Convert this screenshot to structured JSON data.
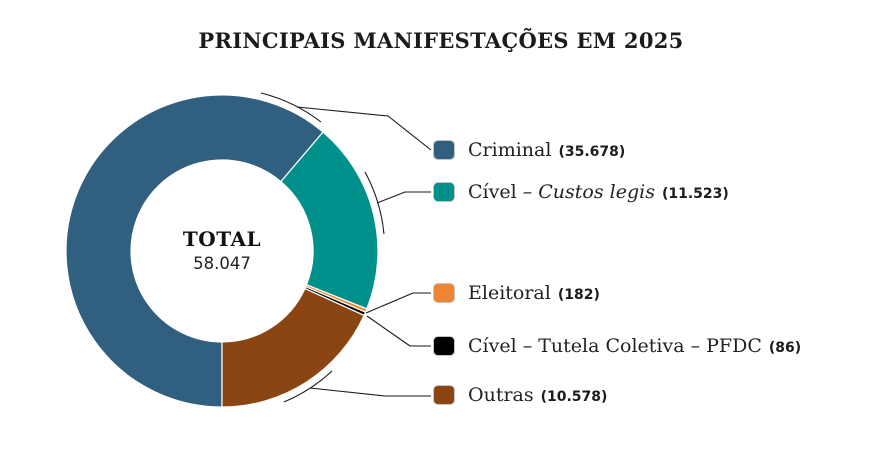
{
  "title": "PRINCIPAIS MANIFESTAÇÕES EM 2025",
  "center": {
    "label": "TOTAL",
    "value_display": "58.047"
  },
  "legend": {
    "items": [
      {
        "id": "criminal",
        "text": "Criminal",
        "italic": "",
        "value_display": "(35.678)",
        "color": "#315F80"
      },
      {
        "id": "civel-custos-legis",
        "text": "Cível – ",
        "italic": "Custos legis",
        "value_display": "(11.523)",
        "color": "#00908B"
      },
      {
        "id": "eleitoral",
        "text": "Eleitoral",
        "italic": "",
        "value_display": "(182)",
        "color": "#EF8432"
      },
      {
        "id": "civel-tutela-coletiva-pfdc",
        "text": "Cível – Tutela Coletiva – PFDC",
        "italic": "",
        "value_display": "(86)",
        "color": "#000000"
      },
      {
        "id": "outras",
        "text": "Outras",
        "italic": "",
        "value_display": "(10.578)",
        "color": "#8A4513"
      }
    ]
  },
  "chart_data": {
    "type": "donut",
    "title": "PRINCIPAIS MANIFESTAÇÕES EM 2025",
    "total": 58047,
    "total_display": "58.047",
    "start_angle_deg": 180,
    "direction": "clockwise",
    "legend_position": "right",
    "segments": [
      {
        "id": "criminal",
        "label": "Criminal",
        "value": 35678,
        "display": "35.678",
        "color": "#315F80"
      },
      {
        "id": "civel-custos-legis",
        "label": "Cível – Custos legis",
        "value": 11523,
        "display": "11.523",
        "color": "#00908B"
      },
      {
        "id": "eleitoral",
        "label": "Eleitoral",
        "value": 182,
        "display": "182",
        "color": "#EF8432"
      },
      {
        "id": "civel-tutela-coletiva-pfdc",
        "label": "Cível – Tutela Coletiva – PFDC",
        "value": 86,
        "display": "86",
        "color": "#000000"
      },
      {
        "id": "outras",
        "label": "Outras",
        "value": 10578,
        "display": "10.578",
        "color": "#8A4513"
      }
    ]
  }
}
